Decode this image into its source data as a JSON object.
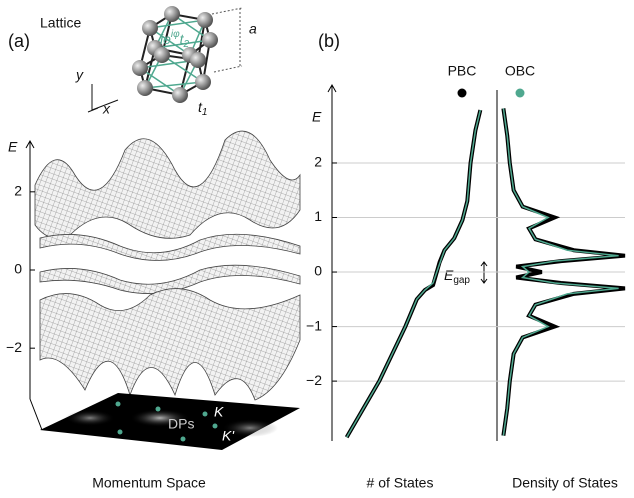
{
  "panel_labels": [
    "(a)",
    "(b)"
  ],
  "chart_data": [
    {
      "type": "surface",
      "title": "Momentum Space",
      "ylabel": "E",
      "ylim": [
        -3.3,
        3.3
      ],
      "yticks": [
        2,
        0,
        {
          "value": -2,
          "label": "−2"
        }
      ],
      "lattice": {
        "title": "Lattice",
        "constant": "a",
        "axis_x": "x",
        "axis_y": "y",
        "t1": {
          "base": "t",
          "sub": "1"
        },
        "t2": {
          "pre": "ie",
          "sup": "iφ",
          "base": "t",
          "sub": "2"
        }
      },
      "markers": [
        "DPs",
        "K",
        "K'"
      ]
    },
    {
      "type": "line",
      "xlabel": "# of States",
      "ylabel": "E",
      "grid": true,
      "xlim": [
        0,
        1
      ],
      "ylim": [
        -3.08,
        3.43
      ],
      "yticks": [
        2,
        1,
        0,
        {
          "value": -1,
          "label": "−1"
        },
        {
          "value": -2,
          "label": "−2"
        }
      ],
      "x": [
        0.09,
        0.29,
        0.45,
        0.52,
        0.57,
        0.62,
        0.66,
        0.69,
        0.75,
        0.8,
        0.83,
        0.85,
        0.88,
        0.91
      ],
      "series": [
        {
          "name": "PBC",
          "color": "#000000",
          "values": [
            -3.03,
            -2.0,
            -1.0,
            -0.5,
            -0.33,
            -0.24,
            0.18,
            0.4,
            0.62,
            0.95,
            1.3,
            2.0,
            2.6,
            2.97
          ]
        },
        {
          "name": "OBC",
          "color": "#4fa88f",
          "values": [
            -3.03,
            -2.0,
            -1.0,
            -0.5,
            -0.33,
            -0.2,
            0.15,
            0.4,
            0.62,
            0.95,
            1.3,
            2.0,
            2.6,
            2.97
          ]
        }
      ]
    },
    {
      "type": "density",
      "xlabel": "Density of States",
      "xlim": [
        0,
        1
      ],
      "ylim": [
        -3.08,
        3.43
      ],
      "annotation": {
        "base": "E",
        "sub": "gap"
      },
      "energies": [
        -3.0,
        -2.5,
        -2.0,
        -1.5,
        -1.2,
        -1.0,
        -0.8,
        -0.6,
        -0.4,
        -0.3,
        -0.2,
        -0.1,
        0,
        0.1,
        0.2,
        0.3,
        0.4,
        0.6,
        0.8,
        1.0,
        1.2,
        1.5,
        2.0,
        2.5,
        3.0
      ],
      "series": [
        {
          "name": "PBC",
          "color": "#000000",
          "values": [
            0.05,
            0.08,
            0.1,
            0.13,
            0.2,
            0.45,
            0.25,
            0.3,
            0.6,
            1.0,
            0.5,
            0.15,
            0.35,
            0.15,
            0.5,
            1.0,
            0.6,
            0.3,
            0.25,
            0.45,
            0.2,
            0.13,
            0.1,
            0.08,
            0.05
          ]
        },
        {
          "name": "OBC",
          "color": "#4fa88f",
          "values": [
            0.05,
            0.08,
            0.1,
            0.13,
            0.2,
            0.4,
            0.25,
            0.3,
            0.55,
            0.95,
            0.45,
            0.2,
            0.25,
            0.2,
            0.45,
            0.95,
            0.55,
            0.3,
            0.25,
            0.4,
            0.2,
            0.13,
            0.1,
            0.08,
            0.05
          ]
        }
      ]
    }
  ]
}
